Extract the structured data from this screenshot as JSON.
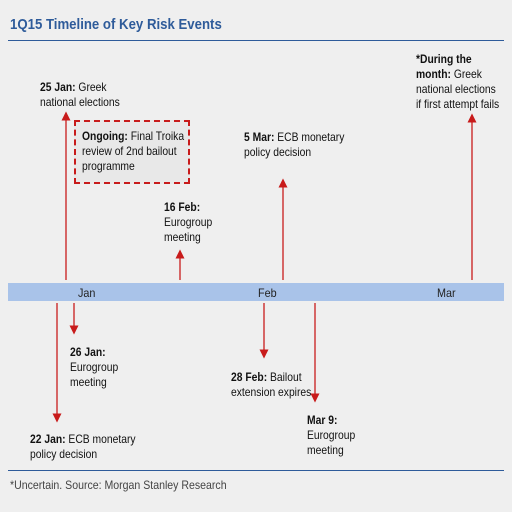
{
  "title": "1Q15 Timeline of Key Risk Events",
  "months": [
    "Jan",
    "Feb",
    "Mar"
  ],
  "events_above": [
    {
      "bold": "25 Jan:",
      "text": " Greek",
      "line2": "national elections"
    },
    {
      "bold": "5 Mar:",
      "text": " ECB monetary",
      "line2": "policy decision"
    },
    {
      "bold": "16 Feb:",
      "text": "",
      "line2": "Eurogroup",
      "line3": "meeting"
    },
    {
      "bold": "*During the",
      "text": "",
      "line2": "month:",
      "line2_rest": " Greek",
      "line3": "national elections",
      "line4": "if first attempt fails"
    }
  ],
  "ongoing": {
    "bold": "Ongoing:",
    "text": " Final Troika",
    "line2": "review of 2nd bailout",
    "line3": "programme"
  },
  "events_below": [
    {
      "bold": "26 Jan:",
      "line2": "Eurogroup",
      "line3": "meeting"
    },
    {
      "bold": "28 Feb:",
      "text": " Bailout",
      "line2": "extension expires"
    },
    {
      "bold": "22 Jan:",
      "text": " ECB monetary",
      "line2": "policy decision"
    },
    {
      "bold": "Mar 9:",
      "line2": "Eurogroup",
      "line3": "meeting"
    }
  ],
  "footnote": "*Uncertain.   Source: Morgan Stanley Research",
  "colors": {
    "accent": "#2e5b9a",
    "arrow": "#c81b1b",
    "timeline": "#a9c3e9"
  }
}
